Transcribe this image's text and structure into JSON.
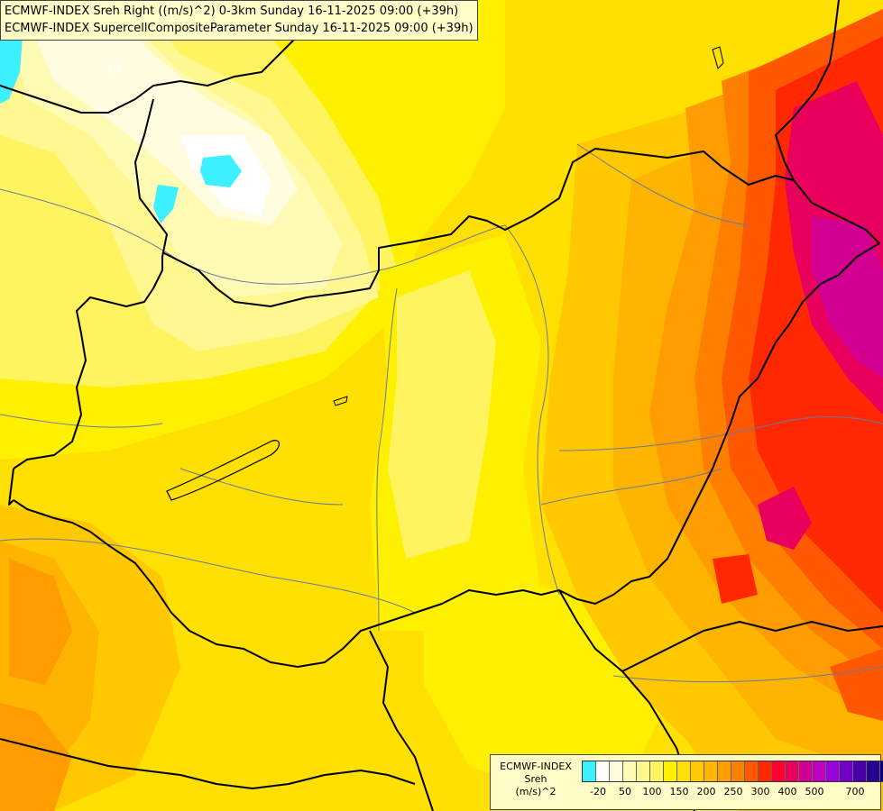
{
  "titles": {
    "line1": "ECMWF-INDEX Sreh Right ((m/s)^2) 0-3km Sunday 16-11-2025 09:00 (+39h)",
    "line2": "ECMWF-INDEX SupercellCompositeParameter Sunday 16-11-2025 09:00 (+39h)"
  },
  "legend": {
    "model": "ECMWF-INDEX",
    "variable": "Sreh",
    "unit": "(m/s)^2",
    "colors": [
      "#3cf0ff",
      "#ffffff",
      "#fffce0",
      "#fffab4",
      "#fff890",
      "#fff460",
      "#fff000",
      "#ffe000",
      "#ffc800",
      "#ffb400",
      "#ff9c00",
      "#ff8000",
      "#ff5800",
      "#ff2800",
      "#ff0030",
      "#e8005c",
      "#d20090",
      "#c000c0",
      "#9a00d8",
      "#7000c8",
      "#4a00a8",
      "#2a0090",
      "#080070"
    ],
    "ticks": [
      "-20",
      "50",
      "100",
      "150",
      "200",
      "250",
      "300",
      "400",
      "500",
      "700"
    ]
  }
}
